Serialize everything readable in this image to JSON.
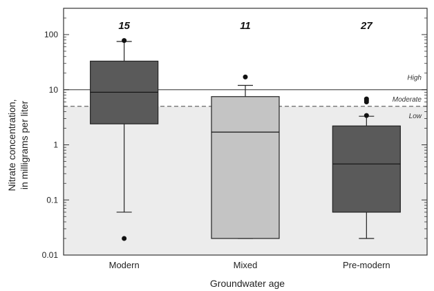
{
  "chart_data": {
    "type": "box",
    "xlabel": "Groundwater age",
    "ylabel_line1": "Nitrate concentration,",
    "ylabel_line2": "in milligrams per liter",
    "y_scale": "log",
    "ylim": [
      0.01,
      300
    ],
    "y_ticks": [
      {
        "value": 0.01,
        "label": "0.01"
      },
      {
        "value": 0.1,
        "label": "0.1"
      },
      {
        "value": 1,
        "label": "1"
      },
      {
        "value": 10,
        "label": "10"
      },
      {
        "value": 100,
        "label": "100"
      }
    ],
    "thresholds": [
      {
        "value": 10,
        "style": "solid"
      },
      {
        "value": 5,
        "style": "dashed"
      }
    ],
    "band_labels": [
      {
        "text": "High",
        "y": 17
      },
      {
        "text": "Moderate",
        "y": 6.8
      },
      {
        "text": "Low",
        "y": 3.4
      }
    ],
    "categories": [
      "Modern",
      "Mixed",
      "Pre-modern"
    ],
    "counts": [
      "15",
      "11",
      "27"
    ],
    "boxes": [
      {
        "name": "Modern",
        "whisker_low": 0.06,
        "q1": 2.4,
        "median": 9,
        "q3": 33,
        "whisker_high": 75,
        "outliers": [
          78,
          0.02
        ],
        "color": "#5a5a5a"
      },
      {
        "name": "Mixed",
        "whisker_low": 0.02,
        "q1": 0.02,
        "median": 1.7,
        "q3": 7.5,
        "whisker_high": 12,
        "outliers": [
          17
        ],
        "color": "#c4c4c4"
      },
      {
        "name": "Pre-modern",
        "whisker_low": 0.02,
        "q1": 0.06,
        "median": 0.45,
        "q3": 2.2,
        "whisker_high": 3.3,
        "outliers": [
          3.4,
          6.0,
          6.4,
          6.8
        ],
        "color": "#5a5a5a"
      }
    ],
    "background_shade": "#ececec"
  }
}
